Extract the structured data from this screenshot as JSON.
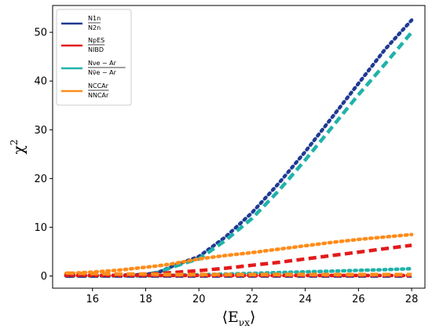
{
  "chart_data": {
    "type": "line",
    "xlabel": "⟨E",
    "xlabel_sub": "νx",
    "xlabel_close": "⟩",
    "ylabel": "χ",
    "ylabel_sup": "2",
    "xlim": [
      14.5,
      28.5
    ],
    "ylim": [
      -2.5,
      55.5
    ],
    "xticks": [
      16,
      18,
      20,
      22,
      24,
      26,
      28
    ],
    "yticks": [
      0,
      10,
      20,
      30,
      40,
      50
    ],
    "grid": false,
    "legend_position": "top-left",
    "legend": [
      {
        "color": "#1f3a93",
        "top": "N1n",
        "bottom": "N2n"
      },
      {
        "color": "#e31a1c",
        "top": "NpES",
        "bottom": "NIBD"
      },
      {
        "color": "#20b2aa",
        "top": "Nνe − Ar",
        "bottom": "Nν̄e − Ar"
      },
      {
        "color": "#ff8c1a",
        "top": "NCCAr",
        "bottom": "NNCAr"
      }
    ],
    "x": [
      15,
      16,
      17,
      18,
      18.5,
      19,
      19.5,
      20,
      21,
      22,
      23,
      24,
      25,
      26,
      27,
      28
    ],
    "series": [
      {
        "color": "#1f3a93",
        "style": "dotted",
        "values": [
          0.1,
          0.1,
          0.15,
          0.3,
          0.8,
          2.0,
          3.0,
          4.0,
          8.0,
          13.0,
          19.0,
          25.5,
          32.5,
          39.5,
          46.5,
          52.5
        ]
      },
      {
        "color": "#20b2aa",
        "style": "dashed",
        "values": [
          0.0,
          0.0,
          0.1,
          0.3,
          0.8,
          1.8,
          2.7,
          3.5,
          7.3,
          11.8,
          17.5,
          23.8,
          30.5,
          37.2,
          43.5,
          50.0
        ]
      },
      {
        "color": "#ff8c1a",
        "style": "dotted",
        "values": [
          0.5,
          0.8,
          1.2,
          1.8,
          2.1,
          2.5,
          3.0,
          3.5,
          4.2,
          4.8,
          5.5,
          6.2,
          6.9,
          7.5,
          8.0,
          8.5
        ]
      },
      {
        "color": "#e31a1c",
        "style": "dashed",
        "values": [
          0.0,
          0.1,
          0.2,
          0.4,
          0.5,
          0.7,
          0.9,
          1.1,
          1.6,
          2.2,
          2.8,
          3.5,
          4.2,
          4.9,
          5.6,
          6.3
        ]
      },
      {
        "color": "#20b2aa",
        "style": "dotted",
        "values": [
          0.0,
          0.0,
          0.0,
          0.05,
          0.1,
          0.15,
          0.2,
          0.25,
          0.4,
          0.55,
          0.7,
          0.85,
          1.0,
          1.15,
          1.3,
          1.5
        ]
      },
      {
        "color": "#1f3a93",
        "style": "dashed",
        "values": [
          0.0,
          0.0,
          0.0,
          0.0,
          0.0,
          0.0,
          0.0,
          0.0,
          0.0,
          0.0,
          0.0,
          0.0,
          0.0,
          0.0,
          0.0,
          0.0
        ]
      },
      {
        "color": "#e31a1c",
        "style": "dotted",
        "values": [
          0.1,
          0.1,
          0.1,
          0.1,
          0.1,
          0.1,
          0.1,
          0.1,
          0.1,
          0.1,
          0.1,
          0.1,
          0.1,
          0.1,
          0.1,
          0.1
        ]
      },
      {
        "color": "#ff8c1a",
        "style": "dashed",
        "values": [
          0.6,
          0.5,
          0.4,
          0.4,
          0.3,
          0.3,
          0.3,
          0.3,
          0.3,
          0.3,
          0.3,
          0.3,
          0.3,
          0.3,
          0.3,
          0.3
        ]
      }
    ]
  }
}
